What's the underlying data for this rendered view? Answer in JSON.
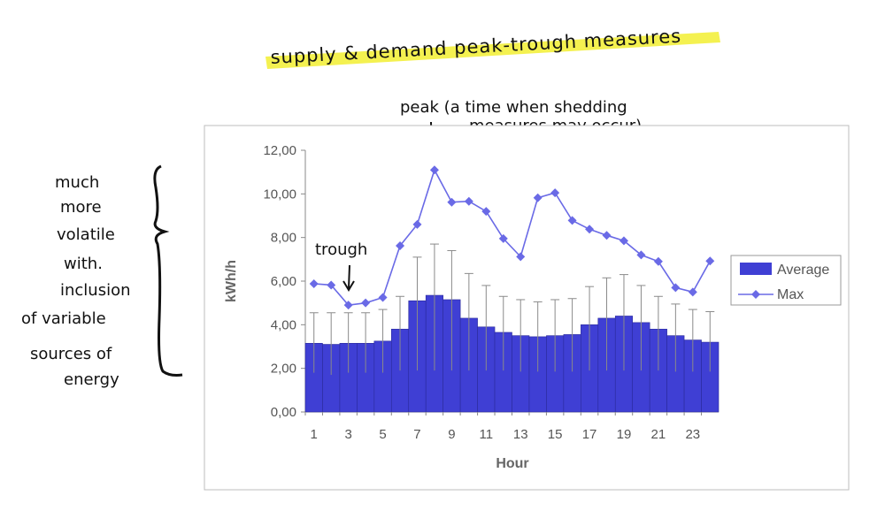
{
  "annotations": {
    "title": "supply & demand peak-trough measures",
    "peak_label_line1": "peak (a time when shedding",
    "peak_label_line2": "measures may occur)",
    "trough_label": "trough",
    "side_note": [
      "much",
      "more",
      "volatile",
      "with.",
      "inclusion",
      "of variable",
      "sources of",
      "energy"
    ]
  },
  "colors": {
    "bar": "#3f3fd4",
    "line": "#6a6ae6",
    "highlight": "#f3f047",
    "error_bar": "#8a8a8a"
  },
  "chart_data": {
    "type": "bar",
    "xlabel": "Hour",
    "ylabel": "kWh/h",
    "ylim": [
      0,
      12
    ],
    "y_ticks": [
      "0,00",
      "2,00",
      "4,00",
      "6,00",
      "8,00",
      "10,00",
      "12,00"
    ],
    "x_tick_labels": [
      "1",
      "3",
      "5",
      "7",
      "9",
      "11",
      "13",
      "15",
      "17",
      "19",
      "21",
      "23"
    ],
    "categories": [
      1,
      2,
      3,
      4,
      5,
      6,
      7,
      8,
      9,
      10,
      11,
      12,
      13,
      14,
      15,
      16,
      17,
      18,
      19,
      20,
      21,
      22,
      23,
      24
    ],
    "series": [
      {
        "name": "Average",
        "type": "bar",
        "values": [
          3.15,
          3.1,
          3.15,
          3.15,
          3.25,
          3.8,
          5.1,
          5.35,
          5.15,
          4.3,
          3.9,
          3.65,
          3.5,
          3.45,
          3.5,
          3.55,
          4.0,
          4.3,
          4.4,
          4.1,
          3.8,
          3.5,
          3.3,
          3.2
        ],
        "error_upper": [
          4.55,
          4.55,
          4.55,
          4.55,
          4.7,
          5.3,
          7.1,
          7.7,
          7.4,
          6.35,
          5.8,
          5.3,
          5.15,
          5.05,
          5.15,
          5.2,
          5.75,
          6.15,
          6.3,
          5.8,
          5.3,
          4.95,
          4.7,
          4.6
        ],
        "error_lower": [
          1.8,
          1.7,
          1.8,
          1.8,
          1.8,
          1.9,
          1.9,
          1.9,
          1.9,
          1.9,
          1.9,
          1.9,
          1.85,
          1.85,
          1.85,
          1.85,
          1.9,
          1.9,
          1.9,
          1.9,
          1.9,
          1.85,
          1.85,
          1.85
        ]
      },
      {
        "name": "Max",
        "type": "line",
        "values": [
          5.88,
          5.82,
          4.9,
          5.0,
          5.25,
          7.62,
          8.6,
          11.1,
          9.62,
          9.66,
          9.2,
          7.95,
          7.12,
          9.82,
          10.05,
          8.78,
          8.38,
          8.1,
          7.85,
          7.2,
          6.9,
          5.7,
          5.5,
          6.92
        ]
      }
    ],
    "legend_position": "right",
    "grid": false
  }
}
